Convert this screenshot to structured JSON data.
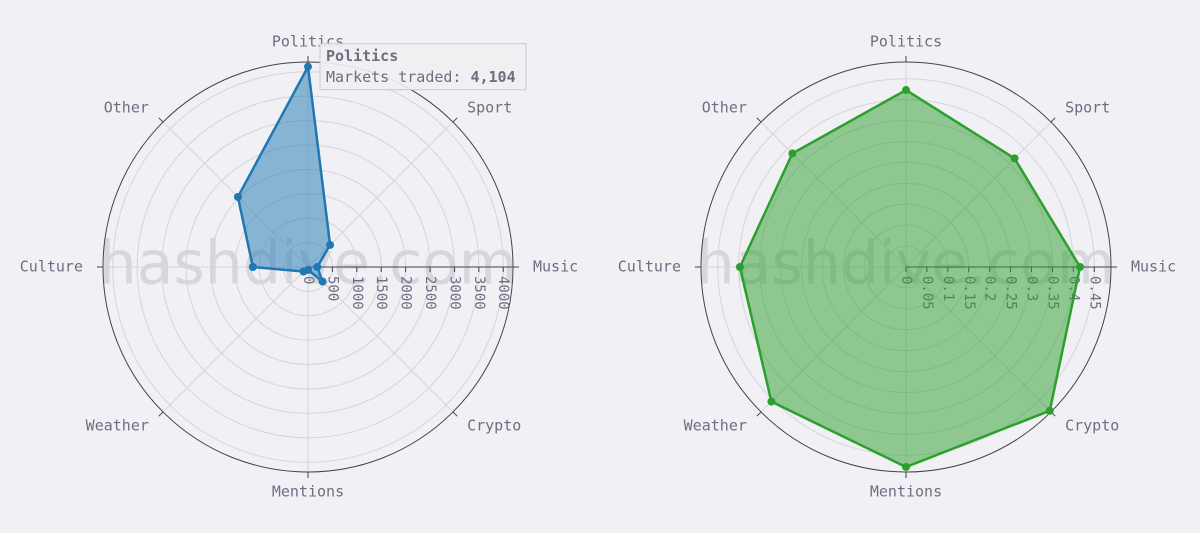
{
  "chart_data": [
    {
      "type": "radar",
      "categories": [
        "Politics",
        "Sport",
        "Music",
        "Crypto",
        "Mentions",
        "Weather",
        "Culture",
        "Other"
      ],
      "values": [
        4104,
        640,
        190,
        420,
        60,
        130,
        1130,
        2030
      ],
      "color": "#1f77b4",
      "rlim": [
        0,
        4200
      ],
      "rticks": [
        0,
        500,
        1000,
        1500,
        2000,
        2500,
        3000,
        3500,
        4000
      ],
      "watermark": "hashdive.com",
      "tooltip": {
        "label": "Markets traded:",
        "value_label": "4,104"
      }
    },
    {
      "type": "radar",
      "categories": [
        "Politics",
        "Sport",
        "Music",
        "Crypto",
        "Mentions",
        "Weather",
        "Culture",
        "Other"
      ],
      "values": [
        0.423,
        0.367,
        0.416,
        0.486,
        0.478,
        0.455,
        0.397,
        0.384
      ],
      "color": "#2ca02c",
      "rlim": [
        0,
        0.49
      ],
      "rticks": [
        0,
        0.05,
        0.1,
        0.15,
        0.2,
        0.25,
        0.3,
        0.35,
        0.4,
        0.45
      ],
      "watermark": "hashdive.com"
    }
  ]
}
